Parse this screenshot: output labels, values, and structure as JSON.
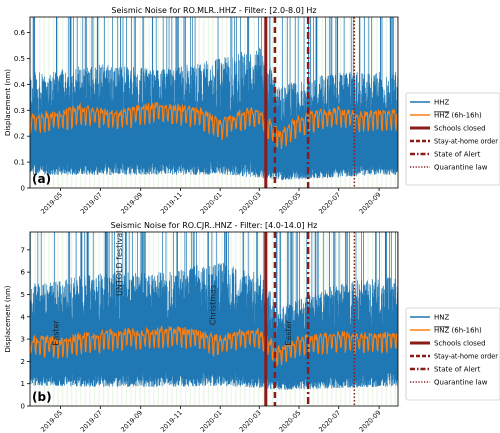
{
  "chart_data": [
    {
      "type": "line",
      "panel_label": "(a)",
      "title": "Seismic Noise for RO.MLR..HHZ - Filter: [2.0-8.0] Hz",
      "ylabel": "Displacement (nm)",
      "xlabel": "",
      "x_tick_labels": [
        "2019-05",
        "2019-07",
        "2019-09",
        "2019-11",
        "2020-01",
        "2020-03",
        "2020-05",
        "2020-07",
        "2020-09"
      ],
      "xlim": [
        "2019-03-15",
        "2020-09-30"
      ],
      "ylim": [
        0,
        0.66
      ],
      "y_ticks": [
        0,
        0.1,
        0.2,
        0.3,
        0.4,
        0.5,
        0.6
      ],
      "y_tick_labels": [
        "0",
        "0.1",
        "0.2",
        "0.3",
        "0.4",
        "0.5",
        "0.6"
      ],
      "legend_position": "right",
      "series": [
        {
          "name": "HHZ",
          "color": "#1f77b4",
          "style": "raw hourly noise, mostly 0.05–0.55 nm, spikes to the top",
          "envelope": {
            "x": [
              "2019-04",
              "2019-07",
              "2019-10",
              "2020-01",
              "2020-03",
              "2020-04",
              "2020-07",
              "2020-09"
            ],
            "low": [
              0.05,
              0.05,
              0.05,
              0.05,
              0.04,
              0.03,
              0.04,
              0.05
            ],
            "high": [
              0.45,
              0.48,
              0.46,
              0.5,
              0.55,
              0.4,
              0.45,
              0.45
            ]
          }
        },
        {
          "name": "HHZ (6h-16h)",
          "legend_label_main": "HHZ",
          "legend_label_suffix": " (6h-16h)",
          "color": "#ff7f0e",
          "x": [
            "2019-04-01",
            "2019-05-01",
            "2019-06-01",
            "2019-07-01",
            "2019-08-01",
            "2019-09-01",
            "2019-10-01",
            "2019-11-01",
            "2019-12-01",
            "2020-01-01",
            "2020-02-01",
            "2020-03-01",
            "2020-04-01",
            "2020-05-01",
            "2020-06-01",
            "2020-07-01",
            "2020-08-01",
            "2020-09-01"
          ],
          "values": [
            0.27,
            0.28,
            0.3,
            0.29,
            0.28,
            0.3,
            0.31,
            0.3,
            0.29,
            0.24,
            0.28,
            0.29,
            0.2,
            0.26,
            0.28,
            0.29,
            0.27,
            0.28
          ]
        }
      ],
      "events": [
        {
          "name": "Schools closed",
          "date": "2020-03-11",
          "color": "#8b1a1a",
          "style": "solid-thick"
        },
        {
          "name": "Stay-at-home order",
          "date": "2020-03-25",
          "color": "#8b1a1a",
          "style": "dashed-thick"
        },
        {
          "name": "State of Alert",
          "date": "2020-05-15",
          "color": "#8b1a1a",
          "style": "dashdot"
        },
        {
          "name": "Quarantine law",
          "date": "2020-07-25",
          "color": "#8b1a1a",
          "style": "dotted"
        }
      ]
    },
    {
      "type": "line",
      "panel_label": "(b)",
      "title": "Seismic Noise for RO.CJR..HNZ - Filter: [4.0-14.0] Hz",
      "ylabel": "Displacement (nm)",
      "xlabel": "",
      "x_tick_labels": [
        "2019-05",
        "2019-07",
        "2019-09",
        "2019-11",
        "2020-01",
        "2020-03",
        "2020-05",
        "2020-07",
        "2020-09"
      ],
      "xlim": [
        "2019-03-15",
        "2020-09-30"
      ],
      "ylim": [
        0,
        7.8
      ],
      "y_ticks": [
        0,
        1,
        2,
        3,
        4,
        5,
        6,
        7
      ],
      "y_tick_labels": [
        "0",
        "1",
        "2",
        "3",
        "4",
        "5",
        "6",
        "7"
      ],
      "legend_position": "right",
      "annotations": [
        {
          "text": "Easter",
          "date": "2019-04-28"
        },
        {
          "text": "UNTOLD festival",
          "date": "2019-08-03"
        },
        {
          "text": "Christmas",
          "date": "2019-12-25"
        },
        {
          "text": "Easter",
          "date": "2020-04-19"
        }
      ],
      "series": [
        {
          "name": "HNZ",
          "color": "#1f77b4",
          "style": "raw hourly noise, mostly 0.8–6 nm, spikes to the top",
          "envelope": {
            "x": [
              "2019-04",
              "2019-07",
              "2019-10",
              "2020-01",
              "2020-03",
              "2020-04",
              "2020-07",
              "2020-09"
            ],
            "low": [
              0.9,
              0.85,
              0.85,
              0.9,
              0.8,
              0.7,
              0.8,
              0.85
            ],
            "high": [
              5.5,
              6.0,
              6.0,
              6.5,
              6.0,
              4.5,
              5.5,
              5.8
            ]
          }
        },
        {
          "name": "HNZ (6h-16h)",
          "legend_label_main": "HNZ",
          "legend_label_suffix": " (6h-16h)",
          "color": "#ff7f0e",
          "x": [
            "2019-04-01",
            "2019-05-01",
            "2019-06-01",
            "2019-07-01",
            "2019-08-01",
            "2019-09-01",
            "2019-10-01",
            "2019-11-01",
            "2019-12-01",
            "2020-01-01",
            "2020-02-01",
            "2020-03-01",
            "2020-04-01",
            "2020-05-01",
            "2020-06-01",
            "2020-07-01",
            "2020-08-01",
            "2020-09-01"
          ],
          "values": [
            2.9,
            2.8,
            3.0,
            3.1,
            3.2,
            3.2,
            3.3,
            3.3,
            3.1,
            2.9,
            3.2,
            3.2,
            2.4,
            2.9,
            3.0,
            3.1,
            3.0,
            3.1
          ]
        }
      ],
      "events": [
        {
          "name": "Schools closed",
          "date": "2020-03-11",
          "color": "#8b1a1a",
          "style": "solid-thick"
        },
        {
          "name": "Stay-at-home order",
          "date": "2020-03-25",
          "color": "#8b1a1a",
          "style": "dashed-thick"
        },
        {
          "name": "State of Alert",
          "date": "2020-05-15",
          "color": "#8b1a1a",
          "style": "dashdot"
        },
        {
          "name": "Quarantine law",
          "date": "2020-07-25",
          "color": "#8b1a1a",
          "style": "dotted"
        }
      ]
    }
  ]
}
